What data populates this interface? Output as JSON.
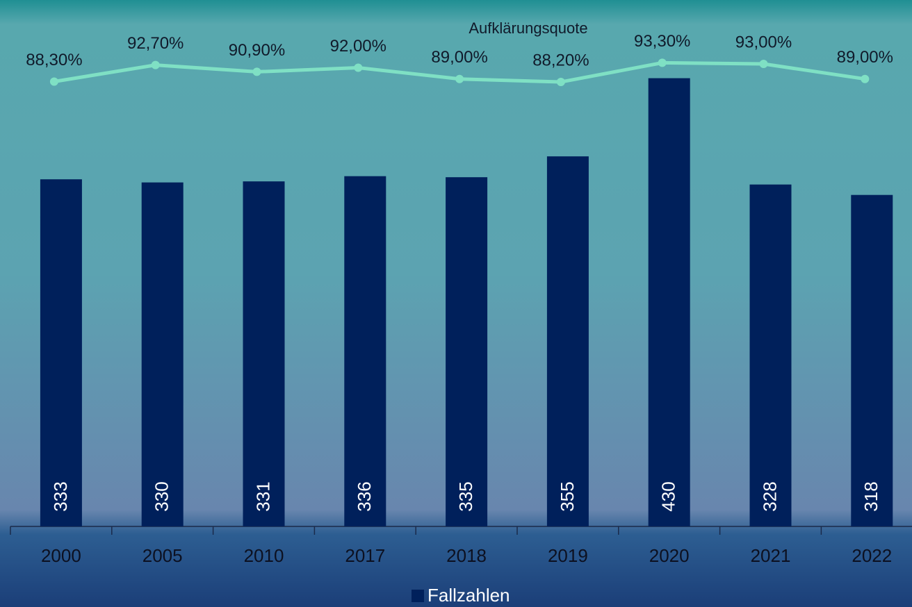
{
  "chart_data": {
    "type": "bar",
    "categories": [
      "2000",
      "2005",
      "2010",
      "2017",
      "2018",
      "2019",
      "2020",
      "2021",
      "2022"
    ],
    "series": [
      {
        "name": "Fallzahlen",
        "type": "bar",
        "color": "#00205b",
        "values": [
          333,
          330,
          331,
          336,
          335,
          355,
          430,
          328,
          318
        ]
      },
      {
        "name": "Aufklärungsquote",
        "type": "line",
        "axis": "y2",
        "color": "#7fe0c4",
        "values": [
          88.3,
          92.7,
          90.9,
          92.0,
          89.0,
          88.2,
          93.3,
          93.0,
          89.0
        ],
        "value_labels": [
          "88,30%",
          "92,70%",
          "90,90%",
          "92,00%",
          "89,00%",
          "88,20%",
          "93,30%",
          "93,00%",
          "89,00%"
        ]
      }
    ],
    "ylim": [
      0,
      505
    ],
    "y2lim": [
      -30,
      110
    ],
    "legend": "bottom"
  }
}
